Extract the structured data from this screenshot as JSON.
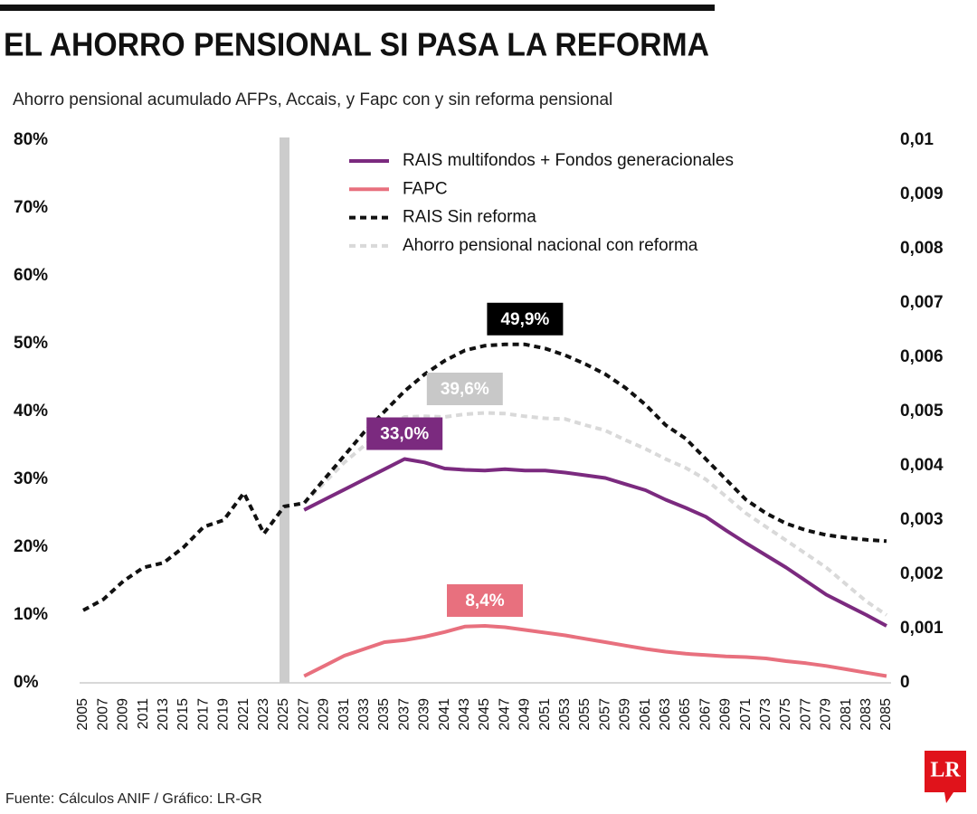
{
  "chart_data": {
    "type": "line",
    "title": "EL AHORRO PENSIONAL SI PASA LA REFORMA",
    "subtitle": "Ahorro pensional acumulado AFPs, Accais, y Fapc con y sin reforma pensional",
    "source": "Fuente: Cálculos ANIF / Gráfico: LR-GR",
    "logo": "LR",
    "x": [
      2005,
      2007,
      2009,
      2011,
      2013,
      2015,
      2017,
      2019,
      2021,
      2023,
      2025,
      2027,
      2029,
      2031,
      2033,
      2035,
      2037,
      2039,
      2041,
      2043,
      2045,
      2047,
      2049,
      2051,
      2053,
      2055,
      2057,
      2059,
      2061,
      2063,
      2065,
      2067,
      2069,
      2071,
      2073,
      2075,
      2077,
      2079,
      2081,
      2083,
      2085
    ],
    "xlim": [
      2005,
      2085
    ],
    "xticks": [
      2005,
      2007,
      2009,
      2011,
      2013,
      2015,
      2017,
      2019,
      2021,
      2023,
      2025,
      2027,
      2029,
      2031,
      2033,
      2035,
      2037,
      2039,
      2041,
      2043,
      2045,
      2047,
      2049,
      2051,
      2053,
      2055,
      2057,
      2059,
      2061,
      2063,
      2065,
      2067,
      2069,
      2071,
      2073,
      2075,
      2077,
      2079,
      2081,
      2083,
      2085
    ],
    "ylim": [
      0,
      80
    ],
    "yticks": [
      {
        "value": 0,
        "label": "0%"
      },
      {
        "value": 10,
        "label": "10%"
      },
      {
        "value": 20,
        "label": "20%"
      },
      {
        "value": 30,
        "label": "30%"
      },
      {
        "value": 40,
        "label": "40%"
      },
      {
        "value": 50,
        "label": "50%"
      },
      {
        "value": 60,
        "label": "60%"
      },
      {
        "value": 70,
        "label": "70%"
      },
      {
        "value": 80,
        "label": "80%"
      }
    ],
    "y2lim": [
      0,
      0.01
    ],
    "y2ticks": [
      0,
      {
        "value": 0.001,
        "label": "0,001"
      },
      {
        "value": 0.002,
        "label": "0,002"
      },
      {
        "value": 0.003,
        "label": "0,003"
      },
      {
        "value": 0.004,
        "label": "0,004"
      },
      {
        "value": 0.005,
        "label": "0,005"
      },
      {
        "value": 0.006,
        "label": "0,006"
      },
      {
        "value": 0.007,
        "label": "0,007"
      },
      {
        "value": 0.008,
        "label": "0,008"
      },
      {
        "value": 0.009,
        "label": "0,009"
      },
      {
        "value": 0.01,
        "label": "0,01"
      }
    ],
    "vline": 2025,
    "vline_color": "#cccccc",
    "series": [
      {
        "name": "RAIS multifondos + Fondos generacionales",
        "color": "#7b2a7f",
        "dashed": false,
        "values": [
          null,
          null,
          null,
          null,
          null,
          null,
          null,
          null,
          null,
          null,
          null,
          25.5,
          27,
          28.5,
          30,
          31.5,
          33,
          32.5,
          31.6,
          31.4,
          31.3,
          31.5,
          31.3,
          31.3,
          31,
          30.6,
          30.2,
          29.3,
          28.4,
          27,
          25.8,
          24.5,
          22.5,
          20.6,
          18.8,
          17,
          15,
          13,
          11.5,
          10,
          8.4
        ]
      },
      {
        "name": "FAPC",
        "color": "#e8707e",
        "dashed": false,
        "values": [
          null,
          null,
          null,
          null,
          null,
          null,
          null,
          null,
          null,
          null,
          null,
          1,
          2.5,
          4,
          5,
          6,
          6.3,
          6.8,
          7.5,
          8.3,
          8.4,
          8.2,
          7.8,
          7.4,
          7,
          6.5,
          6,
          5.5,
          5,
          4.6,
          4.3,
          4.1,
          3.9,
          3.8,
          3.6,
          3.2,
          2.9,
          2.5,
          2,
          1.5,
          1
        ]
      },
      {
        "name": "RAIS Sin reforma",
        "color": "#111111",
        "dashed": true,
        "values": [
          10.7,
          12.3,
          15,
          17,
          17.7,
          20,
          23,
          24,
          28,
          22,
          26,
          26.5,
          30,
          33.5,
          37,
          40,
          43,
          45.5,
          47.5,
          49,
          49.7,
          49.9,
          49.9,
          49.3,
          48.3,
          47,
          45.5,
          43.5,
          41,
          38,
          36,
          33,
          30,
          27,
          25,
          23.5,
          22.5,
          21.8,
          21.4,
          21.1,
          20.9
        ]
      },
      {
        "name": "Ahorro pensional nacional con reforma",
        "color": "#d9d9d9",
        "dashed": true,
        "values": [
          null,
          null,
          null,
          null,
          null,
          null,
          null,
          null,
          null,
          null,
          null,
          26.5,
          29.5,
          32.5,
          35,
          37.5,
          39.2,
          39.3,
          39.2,
          39.6,
          39.8,
          39.7,
          39.3,
          39,
          38.9,
          38,
          37.2,
          35.8,
          34.5,
          33,
          31.7,
          30,
          27.5,
          25,
          23,
          21,
          19,
          17,
          14.5,
          12,
          10
        ]
      }
    ],
    "annotations": [
      {
        "text": "49,9%",
        "x": 2049,
        "y": 49.9,
        "color": "#000000"
      },
      {
        "text": "39,6%",
        "x": 2043,
        "y": 39.6,
        "color": "#c8c8c8"
      },
      {
        "text": "33,0%",
        "x": 2037,
        "y": 33,
        "color": "#7b2a7f"
      },
      {
        "text": "8,4%",
        "x": 2045,
        "y": 8.4,
        "color": "#e8707e"
      }
    ]
  }
}
